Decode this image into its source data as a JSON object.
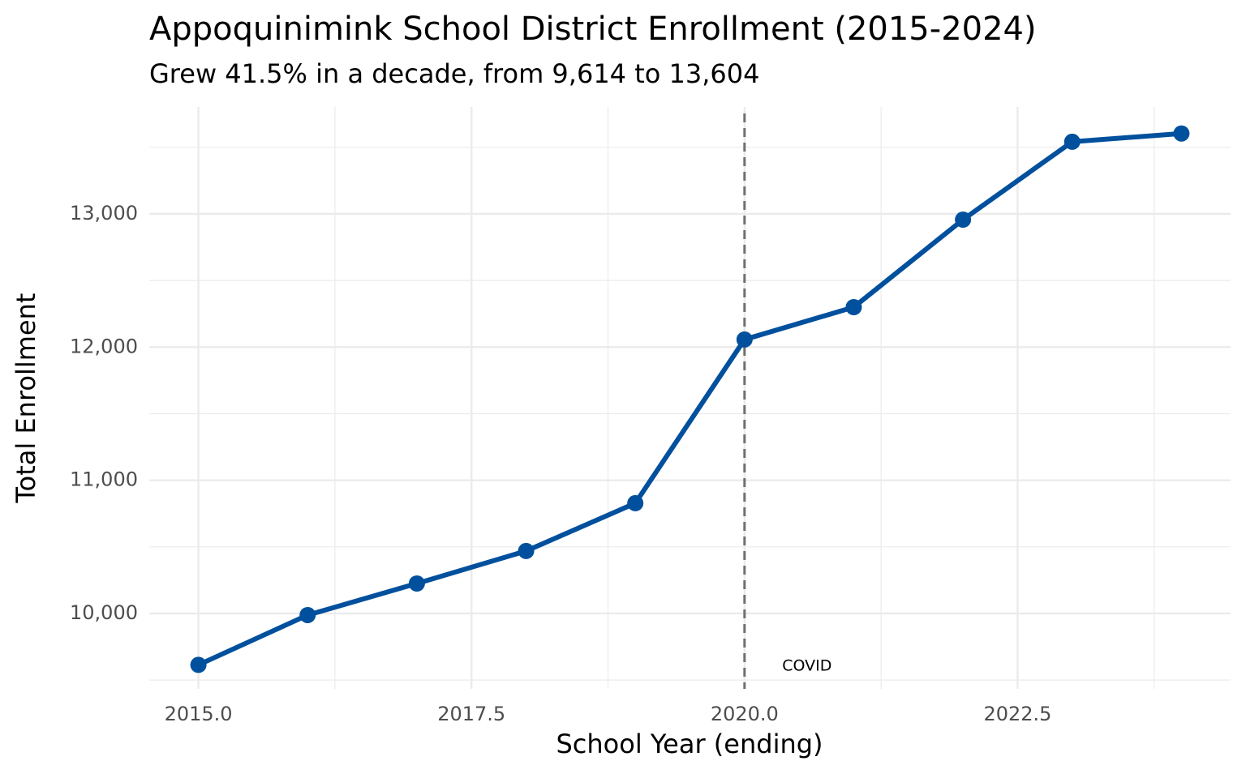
{
  "chart_data": {
    "type": "line",
    "title": "Appoquinimink School District Enrollment (2015-2024)",
    "subtitle": "Grew 41.5% in a decade, from 9,614 to 13,604",
    "x_label": "School Year (ending)",
    "y_label": "Total Enrollment",
    "x": [
      2015,
      2016,
      2017,
      2018,
      2019,
      2020,
      2021,
      2022,
      2023,
      2024
    ],
    "series": [
      {
        "name": "Total Enrollment",
        "color": "#00509d",
        "values": [
          9614,
          9988,
          10225,
          10469,
          10828,
          12057,
          12300,
          12957,
          13542,
          13604
        ]
      }
    ],
    "xlim": [
      2014.55,
      2024.45
    ],
    "ylim": [
      9434,
      13803
    ],
    "xticks": [
      {
        "value": 2015,
        "label": "2015.0"
      },
      {
        "value": 2017.5,
        "label": "2017.5"
      },
      {
        "value": 2020,
        "label": "2020.0"
      },
      {
        "value": 2022.5,
        "label": "2022.5"
      }
    ],
    "yticks": [
      {
        "value": 10000,
        "label": "10,000"
      },
      {
        "value": 11000,
        "label": "11,000"
      },
      {
        "value": 12000,
        "label": "12,000"
      },
      {
        "value": 13000,
        "label": "13,000"
      }
    ],
    "x_minor_ticks": [
      2016.25,
      2018.75,
      2021.25,
      2023.75
    ],
    "y_minor_ticks": [
      9500,
      10500,
      11500,
      12500,
      13500
    ],
    "grid": true,
    "annotation": {
      "x": 2020,
      "label": "COVID"
    }
  }
}
